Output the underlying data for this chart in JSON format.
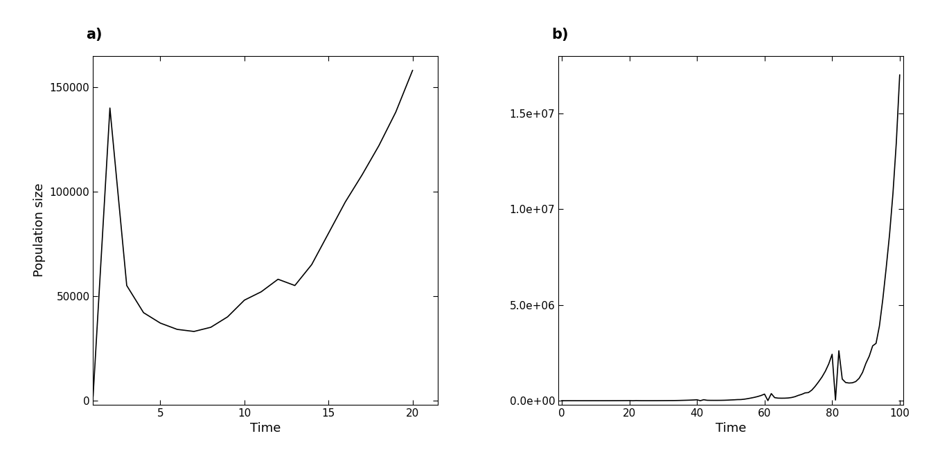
{
  "panel_a": {
    "label": "a)",
    "xlabel": "Time",
    "ylabel": "Population size",
    "x_ticks": [
      5,
      10,
      15,
      20
    ],
    "y_ticks": [
      0,
      50000,
      100000,
      150000
    ],
    "xlim": [
      1,
      21.5
    ],
    "ylim": [
      -2000,
      165000
    ]
  },
  "panel_b": {
    "label": "b)",
    "xlabel": "Time",
    "x_ticks": [
      0,
      20,
      40,
      60,
      80,
      100
    ],
    "y_ticks": [
      0.0,
      5000000.0,
      10000000.0,
      15000000.0
    ],
    "xlim": [
      -1,
      101
    ],
    "ylim": [
      -200000,
      18000000.0
    ]
  },
  "line_color": "#000000",
  "line_width": 1.2,
  "bg_color": "#ffffff",
  "label_fontsize": 13,
  "tick_fontsize": 11,
  "panel_label_fontsize": 15
}
